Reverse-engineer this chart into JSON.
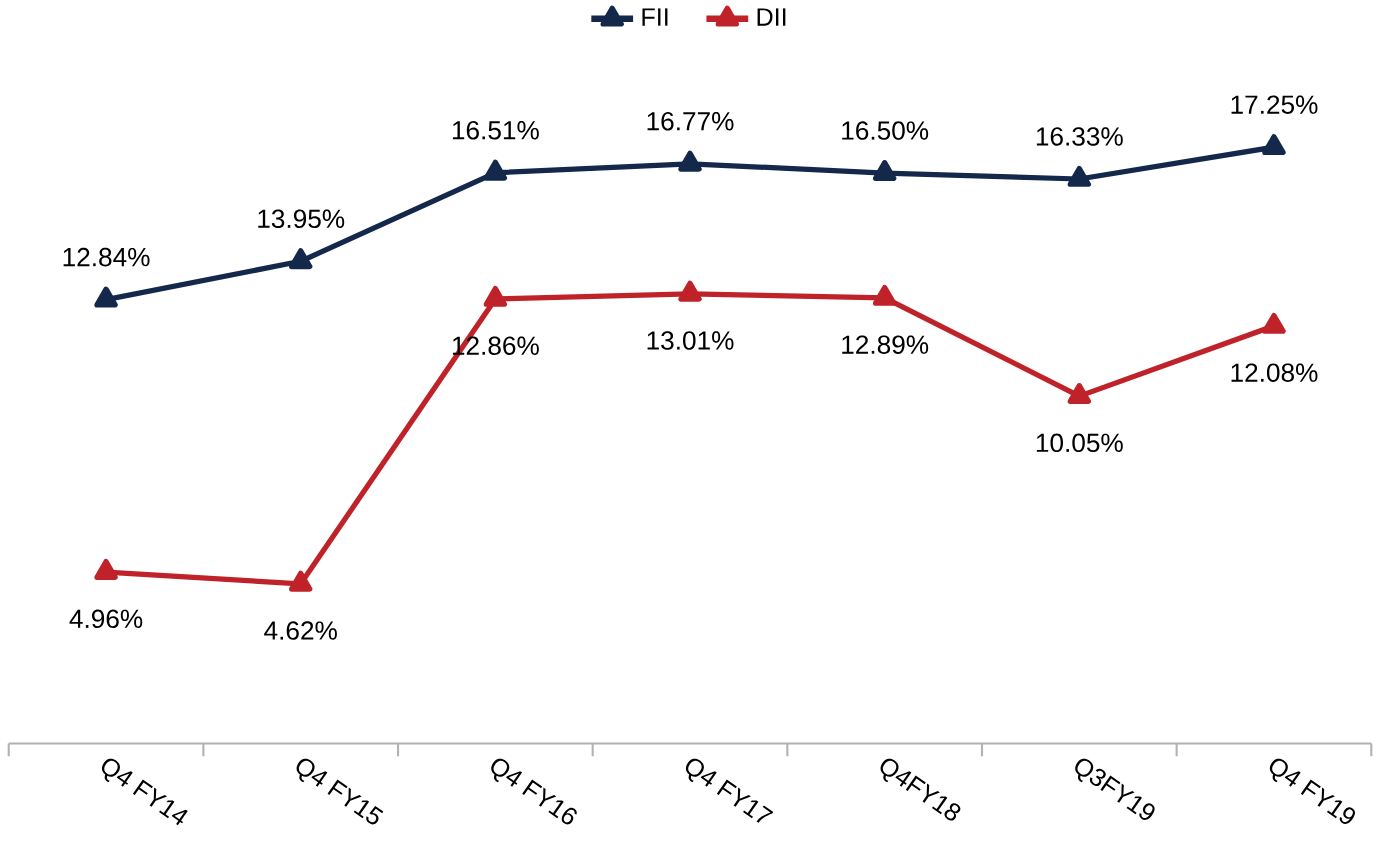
{
  "chart_data": {
    "type": "line",
    "categories": [
      "Q4 FY14",
      "Q4 FY15",
      "Q4 FY16",
      "Q4 FY17",
      "Q4FY18",
      "Q3FY19",
      "Q4 FY19"
    ],
    "series": [
      {
        "name": "FII",
        "color": "#14284b",
        "values": [
          12.84,
          13.95,
          16.51,
          16.77,
          16.5,
          16.33,
          17.25
        ],
        "value_labels": [
          "12.84%",
          "13.95%",
          "16.51%",
          "16.77%",
          "16.50%",
          "16.33%",
          "17.25%"
        ]
      },
      {
        "name": "DII",
        "color": "#c0222a",
        "values": [
          4.96,
          4.62,
          12.86,
          13.01,
          12.89,
          10.05,
          12.08
        ],
        "value_labels": [
          "4.96%",
          "4.62%",
          "12.86%",
          "13.01%",
          "12.89%",
          "10.05%",
          "12.08%"
        ]
      }
    ],
    "marker": "triangle",
    "line_style": "solid",
    "legend": "top"
  }
}
